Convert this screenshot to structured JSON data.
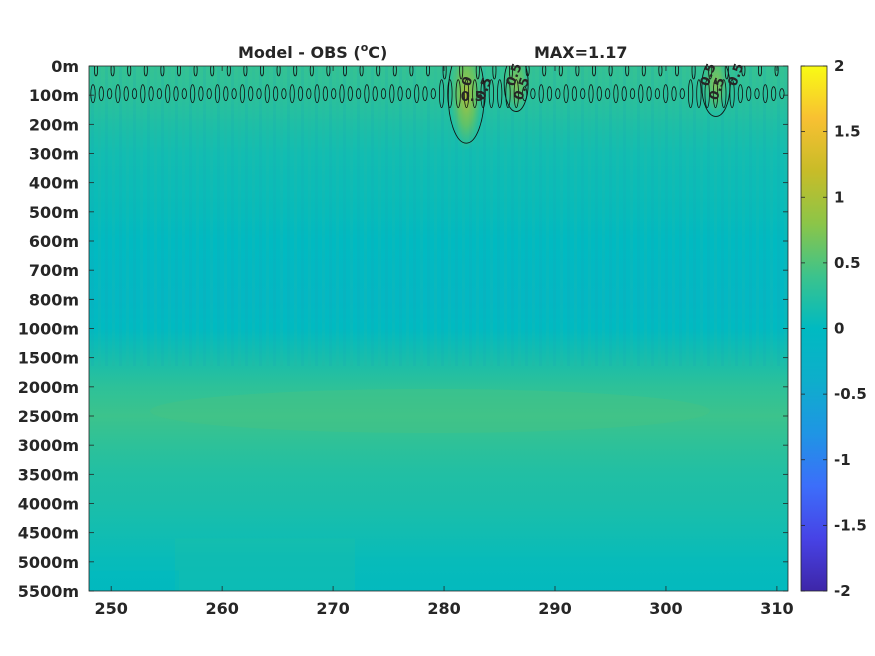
{
  "chart_data": {
    "type": "heatmap",
    "title": "Model - OBS (°C)",
    "title_main": "Model - OBS (",
    "title_sup": "o",
    "title_unit": "C)",
    "max_label": "MAX=1.17",
    "x_ticks": [
      250,
      260,
      270,
      280,
      290,
      300,
      310
    ],
    "x_tick_labels": [
      "250",
      "260",
      "270",
      "280",
      "290",
      "300",
      "310"
    ],
    "x_range": [
      248,
      311
    ],
    "y_tick_labels": [
      "0m",
      "100m",
      "200m",
      "300m",
      "400m",
      "500m",
      "600m",
      "700m",
      "800m",
      "1000m",
      "1500m",
      "2000m",
      "2500m",
      "3000m",
      "3500m",
      "4000m",
      "4500m",
      "5000m",
      "5500m"
    ],
    "colorbar": {
      "range": [
        -2,
        2
      ],
      "ticks": [
        2,
        1.5,
        1,
        0.5,
        0,
        -0.5,
        -1,
        -1.5,
        -2
      ],
      "tick_labels": [
        "2",
        "1.5",
        "1",
        "0.5",
        "0",
        "-0.5",
        "-1",
        "-1.5",
        "-2"
      ],
      "colormap": "parula"
    },
    "depth_profile": [
      {
        "depth": "0m",
        "value": 0.35
      },
      {
        "depth": "100m",
        "value": 0.3
      },
      {
        "depth": "200m",
        "value": 0.2
      },
      {
        "depth": "300m",
        "value": 0.12
      },
      {
        "depth": "400m",
        "value": 0.08
      },
      {
        "depth": "500m",
        "value": 0.05
      },
      {
        "depth": "600m",
        "value": 0.0
      },
      {
        "depth": "700m",
        "value": -0.05
      },
      {
        "depth": "800m",
        "value": -0.08
      },
      {
        "depth": "1000m",
        "value": 0.0
      },
      {
        "depth": "1500m",
        "value": 0.15
      },
      {
        "depth": "2000m",
        "value": 0.3
      },
      {
        "depth": "2500m",
        "value": 0.4
      },
      {
        "depth": "3000m",
        "value": 0.3
      },
      {
        "depth": "3500m",
        "value": 0.22
      },
      {
        "depth": "4000m",
        "value": 0.18
      },
      {
        "depth": "4500m",
        "value": 0.12
      },
      {
        "depth": "5000m",
        "value": 0.05
      },
      {
        "depth": "5500m",
        "value": 0.02
      }
    ],
    "contour_level": 0.5,
    "contour_labels": [
      {
        "text": "0.5",
        "x": 281.5
      },
      {
        "text": "0",
        "x": 282.3
      },
      {
        "text": "0.5",
        "x": 283.6
      },
      {
        "text": "0.5",
        "x": 286.3
      },
      {
        "text": "0.5",
        "x": 287.0
      },
      {
        "text": "0.5",
        "x": 303.8
      },
      {
        "text": "0.5",
        "x": 304.6
      },
      {
        "text": "0.5",
        "x": 306.3
      }
    ],
    "hotspots": [
      {
        "x": 282,
        "depth_index": 1,
        "value": 1.17
      },
      {
        "x": 286.5,
        "depth_index": 0.6,
        "value": 0.8
      },
      {
        "x": 304.5,
        "depth_index": 0.6,
        "value": 0.8
      }
    ]
  }
}
